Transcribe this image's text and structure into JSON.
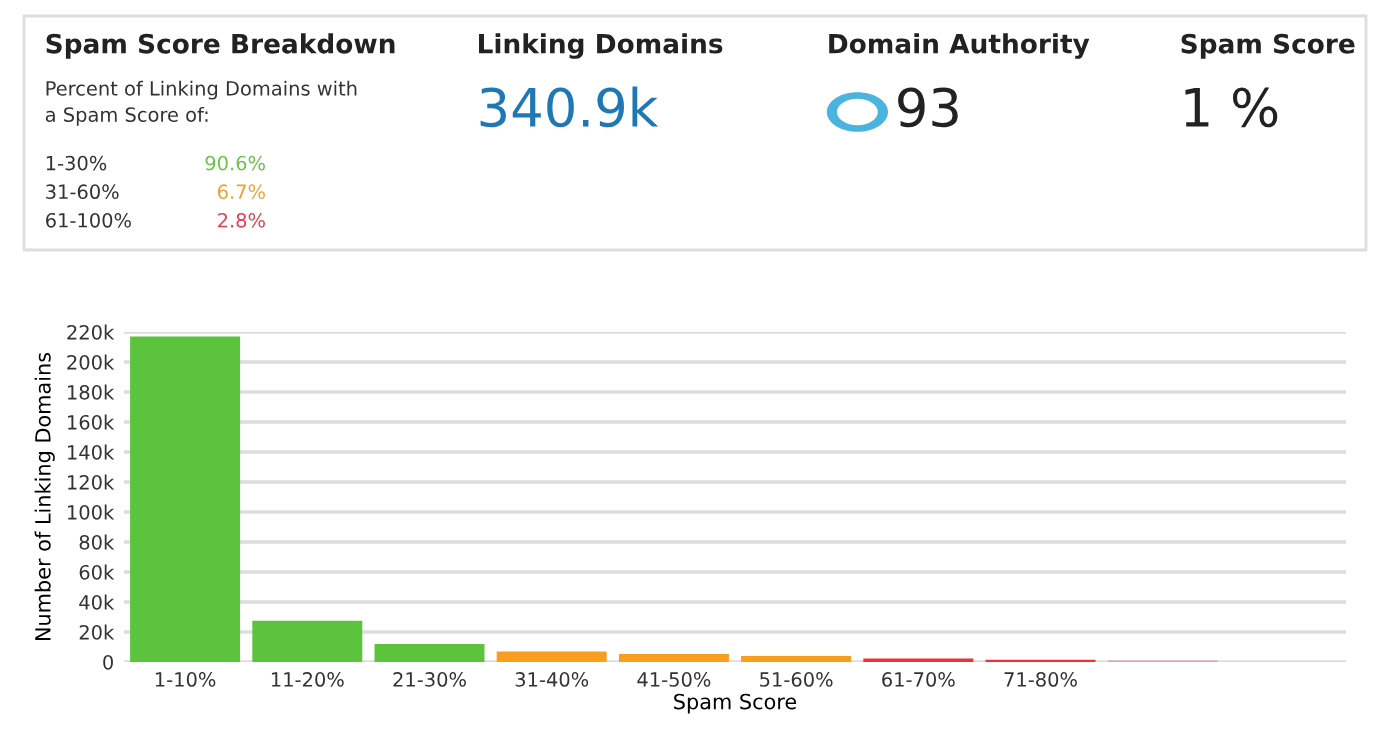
{
  "chart_data": [
    {
      "type": "other",
      "title": "Spam Score Breakdown",
      "subtitle": "Percent of Linking Domains with\na Spam Score of:",
      "categories": [
        "1-30%",
        "31-60%",
        "61-100%"
      ],
      "values": [
        90.6,
        6.7,
        2.8
      ],
      "value_labels": [
        "90.6%",
        "6.7%",
        "2.8%"
      ],
      "colors": [
        "#6cc24a",
        "#f0a030",
        "#e04050"
      ]
    },
    {
      "type": "other",
      "title": "Linking Domains",
      "annotations": [
        "340.9k"
      ]
    },
    {
      "type": "other",
      "title": "Domain Authority",
      "annotations": [
        "93"
      ]
    },
    {
      "type": "other",
      "title": "Spam Score",
      "annotations": [
        "1 %"
      ]
    },
    {
      "type": "bar",
      "xlabel": "Spam Score",
      "ylabel": "Number of Linking Domains",
      "categories": [
        "1-10%",
        "11-20%",
        "21-30%",
        "31-40%",
        "41-50%",
        "51-60%",
        "61-70%",
        "71-80%",
        null,
        null
      ],
      "values": [
        217000,
        27500,
        12000,
        7000,
        5300,
        4000,
        2300,
        1500,
        1000,
        null
      ],
      "colors": [
        "#5cc43c",
        "#5cc43c",
        "#5cc43c",
        "#f99d1c",
        "#f99d1c",
        "#f99d1c",
        "#ee3338",
        "#ee3338",
        "#e8a0a6",
        "#e8a0a6"
      ],
      "ylim": [
        0,
        220000
      ],
      "yticks": [
        {
          "value": 0,
          "label": "0"
        },
        {
          "value": 20000,
          "label": "20k"
        },
        {
          "value": 40000,
          "label": "40k"
        },
        {
          "value": 60000,
          "label": "60k"
        },
        {
          "value": 80000,
          "label": "80k"
        },
        {
          "value": 100000,
          "label": "100k"
        },
        {
          "value": 120000,
          "label": "120k"
        },
        {
          "value": 140000,
          "label": "140k"
        },
        {
          "value": 160000,
          "label": "160k"
        },
        {
          "value": 180000,
          "label": "180k"
        },
        {
          "value": 200000,
          "label": "200k"
        },
        {
          "value": 220000,
          "label": "220k"
        }
      ],
      "grid": "y",
      "legend": false
    }
  ]
}
